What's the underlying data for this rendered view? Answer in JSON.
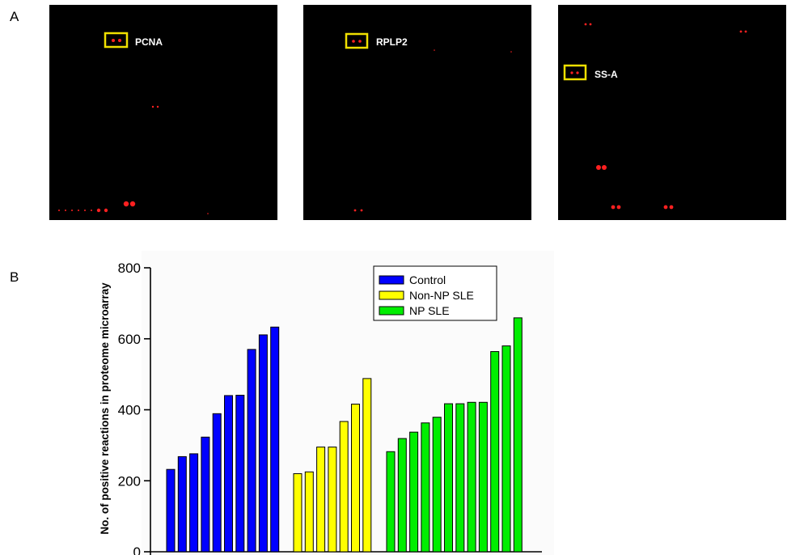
{
  "figure": {
    "panel_a_label": "A",
    "panel_b_label": "B"
  },
  "panel_a": {
    "images": [
      {
        "label": "PCNA"
      },
      {
        "label": "RPLP2"
      },
      {
        "label": "SS-A"
      }
    ],
    "colors": {
      "background": "#000000",
      "spot": "#ff2020",
      "highlight_box": "#f0e000",
      "label": "#ffffff"
    }
  },
  "chart_data": {
    "type": "bar",
    "title": "",
    "xlabel": "",
    "ylabel": "No. of positive reactions  in  proteome microarray",
    "ylim": [
      0,
      800
    ],
    "yticks": [
      0,
      200,
      400,
      600,
      800
    ],
    "grid": false,
    "legend_position": "top-right",
    "series": [
      {
        "name": "Control",
        "color": "#0000ff",
        "values": [
          232,
          268,
          276,
          323,
          389,
          440,
          441,
          570,
          611,
          633
        ]
      },
      {
        "name": "Non-NP SLE",
        "color": "#ffff00",
        "values": [
          220,
          225,
          295,
          295,
          367,
          416,
          488
        ]
      },
      {
        "name": "NP SLE",
        "color": "#00ee00",
        "values": [
          282,
          319,
          337,
          363,
          379,
          417,
          417,
          421,
          421,
          564,
          580,
          659
        ]
      }
    ]
  }
}
